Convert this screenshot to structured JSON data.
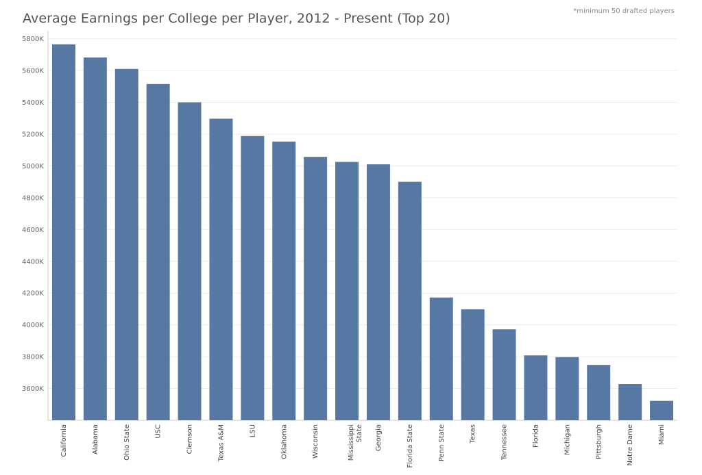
{
  "title": "Average Earnings per College per Player, 2012 - Present (Top 20)",
  "footnote": "*minimum 50 drafted players",
  "colors": {
    "bar": "#5878a4",
    "grid": "#ececec",
    "axis": "#cccccc"
  },
  "chart_data": {
    "type": "bar",
    "title": "Average Earnings per College per Player, 2012 - Present (Top 20)",
    "xlabel": "",
    "ylabel": "",
    "ylim": [
      3400,
      5850
    ],
    "yticks": [
      3600,
      3800,
      4000,
      4200,
      4400,
      4600,
      4800,
      5000,
      5200,
      5400,
      5600,
      5800
    ],
    "ytick_labels": [
      "3600K",
      "3800K",
      "4000K",
      "4200K",
      "4400K",
      "4600K",
      "4800K",
      "5000K",
      "5200K",
      "5400K",
      "5600K",
      "5800K"
    ],
    "grid": true,
    "categories": [
      "California",
      "Alabama",
      "Ohio State",
      "USC",
      "Clemson",
      "Texas A&M",
      "LSU",
      "Oklahoma",
      "Wisconsin",
      "Mississippi State",
      "Georgia",
      "Florida State",
      "Penn State",
      "Texas",
      "Tennessee",
      "Florida",
      "Michigan",
      "Pittsburgh",
      "Notre Dame",
      "Miami"
    ],
    "category_lines": [
      [
        "California"
      ],
      [
        "Alabama"
      ],
      [
        "Ohio State"
      ],
      [
        "USC"
      ],
      [
        "Clemson"
      ],
      [
        "Texas A&M"
      ],
      [
        "LSU"
      ],
      [
        "Oklahoma"
      ],
      [
        "Wisconsin"
      ],
      [
        "Mississippi",
        "State"
      ],
      [
        "Georgia"
      ],
      [
        "Florida State"
      ],
      [
        "Penn State"
      ],
      [
        "Texas"
      ],
      [
        "Tennessee"
      ],
      [
        "Florida"
      ],
      [
        "Michigan"
      ],
      [
        "Pittsburgh"
      ],
      [
        "Notre Dame"
      ],
      [
        "Miami"
      ]
    ],
    "values": [
      5765,
      5682,
      5610,
      5515,
      5400,
      5297,
      5188,
      5153,
      5057,
      5025,
      5010,
      4900,
      4172,
      4098,
      3972,
      3808,
      3797,
      3748,
      3628,
      3522
    ]
  }
}
